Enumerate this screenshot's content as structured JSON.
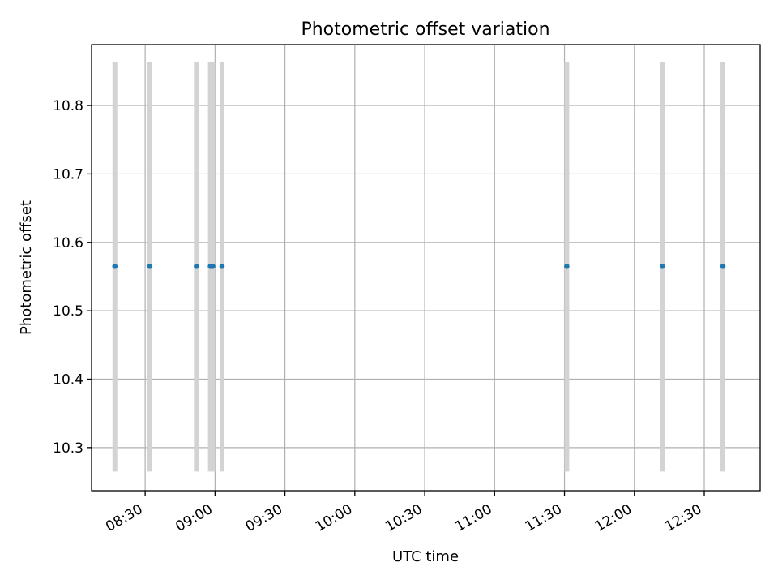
{
  "chart_data": {
    "type": "scatter",
    "title": "Photometric offset variation",
    "xlabel": "UTC time",
    "ylabel": "Photometric offset",
    "x_ticks": [
      "08:30",
      "09:00",
      "09:30",
      "10:00",
      "10:30",
      "11:00",
      "11:30",
      "12:00",
      "12:30"
    ],
    "y_ticks": [
      "10.3",
      "10.4",
      "10.5",
      "10.6",
      "10.7",
      "10.8"
    ],
    "xlim": [
      "08:07",
      "12:54"
    ],
    "ylim": [
      10.237,
      10.889
    ],
    "grid": true,
    "x": [
      "08:17",
      "08:32",
      "08:52",
      "08:58",
      "08:59",
      "09:03",
      "11:31",
      "12:12",
      "12:38"
    ],
    "y": [
      10.565,
      10.565,
      10.565,
      10.565,
      10.565,
      10.565,
      10.565,
      10.565,
      10.565
    ],
    "error_low": [
      10.265,
      10.265,
      10.265,
      10.265,
      10.265,
      10.265,
      10.265,
      10.265,
      10.265
    ],
    "error_high": [
      10.863,
      10.863,
      10.863,
      10.863,
      10.863,
      10.863,
      10.863,
      10.863,
      10.863
    ],
    "marker_color": "#1f77b4",
    "errorbar_color": "#d3d3d3"
  }
}
